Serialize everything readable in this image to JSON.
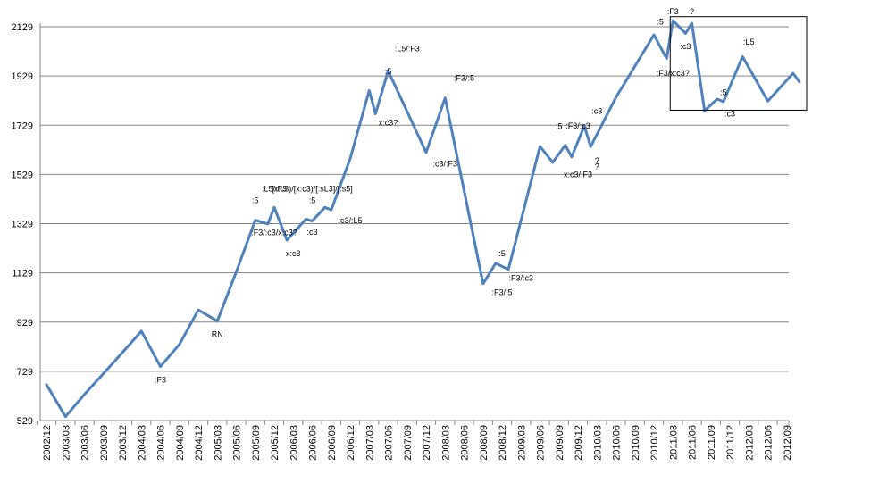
{
  "chart_data": {
    "type": "line",
    "title": "",
    "xlabel": "",
    "ylabel": "",
    "ylim": [
      529,
      2129
    ],
    "yticks": [
      529,
      729,
      929,
      1129,
      1329,
      1529,
      1729,
      1929,
      2129
    ],
    "categories": [
      "2002/12",
      "2003/03",
      "2003/06",
      "2003/09",
      "2003/12",
      "2004/03",
      "2004/06",
      "2004/09",
      "2004/12",
      "2005/03",
      "2005/06",
      "2005/09",
      "2005/12",
      "2006/03",
      "2006/06",
      "2006/09",
      "2006/12",
      "2007/03",
      "2007/06",
      "2007/09",
      "2007/12",
      "2008/03",
      "2008/06",
      "2008/09",
      "2008/12",
      "2009/03",
      "2009/06",
      "2009/09",
      "2009/12",
      "2010/03",
      "2010/06",
      "2010/09",
      "2010/12",
      "2011/03",
      "2011/06",
      "2011/09",
      "2011/12",
      "2012/03",
      "2012/06",
      "2012/09"
    ],
    "series": [
      {
        "color": "#4f81bd",
        "points": [
          [
            "2002/12",
            675
          ],
          [
            "2003/03",
            545
          ],
          [
            "2003/06",
            635
          ],
          [
            "2003/09",
            720
          ],
          [
            "2003/12",
            805
          ],
          [
            "2004/03",
            892
          ],
          [
            "2004/06",
            748
          ],
          [
            "2004/09",
            838
          ],
          [
            "2004/12",
            978
          ],
          [
            "2005/03",
            933
          ],
          [
            "2005/06",
            1133
          ],
          [
            "2005/09",
            1343
          ],
          [
            "2005/11",
            1328
          ],
          [
            "2005/12",
            1395
          ],
          [
            "2006/02",
            1262
          ],
          [
            "2006/03",
            1290
          ],
          [
            "2006/05",
            1347
          ],
          [
            "2006/06",
            1340
          ],
          [
            "2006/08",
            1395
          ],
          [
            "2006/09",
            1385
          ],
          [
            "2006/12",
            1593
          ],
          [
            "2007/03",
            1870
          ],
          [
            "2007/04",
            1775
          ],
          [
            "2007/06",
            1950
          ],
          [
            "2007/12",
            1618
          ],
          [
            "2008/03",
            1840
          ],
          [
            "2008/09",
            1085
          ],
          [
            "2008/11",
            1168
          ],
          [
            "2009/01",
            1143
          ],
          [
            "2009/06",
            1643
          ],
          [
            "2009/08",
            1578
          ],
          [
            "2009/10",
            1648
          ],
          [
            "2009/11",
            1600
          ],
          [
            "2010/01",
            1726
          ],
          [
            "2010/02",
            1642
          ],
          [
            "2010/06",
            1842
          ],
          [
            "2010/12",
            2096
          ],
          [
            "2011/02",
            2000
          ],
          [
            "2011/03",
            2154
          ],
          [
            "2011/05",
            2102
          ],
          [
            "2011/06",
            2143
          ],
          [
            "2011/08",
            1788
          ],
          [
            "2011/10",
            1835
          ],
          [
            "2011/11",
            1825
          ],
          [
            "2012/02",
            2008
          ],
          [
            "2012/06",
            1827
          ],
          [
            "2012/10",
            1940
          ],
          [
            "2012/11",
            1905
          ]
        ]
      }
    ],
    "annotations": [
      {
        "text": ":F3",
        "x": "2004/06",
        "y": 683
      },
      {
        "text": "RN",
        "x": "2005/03",
        "y": 868
      },
      {
        "text": ":5",
        "x": "2005/09",
        "y": 1412
      },
      {
        "text": ":L5/:F3",
        "x": "2005/12",
        "y": 1460
      },
      {
        "text": "[x:c3)/[x:c3)/[:sL3]/[:s5]",
        "x": "2006/06",
        "y": 1460
      },
      {
        "text": ":F3/:c3/x:c3?",
        "x": "2005/12",
        "y": 1282
      },
      {
        "text": "x:c3",
        "x": "2006/03",
        "y": 1196
      },
      {
        "text": ":5",
        "x": "2006/06",
        "y": 1412
      },
      {
        "text": ":c3",
        "x": "2006/06",
        "y": 1284
      },
      {
        "text": ":c3/:L5",
        "x": "2006/12",
        "y": 1330
      },
      {
        "text": ":5",
        "x": "2007/06",
        "y": 1936
      },
      {
        "text": ":L5/:F3",
        "x": "2007/09",
        "y": 2029
      },
      {
        "text": "x:c3?",
        "x": "2007/06",
        "y": 1728
      },
      {
        "text": ":F3/:5",
        "x": "2008/06",
        "y": 1910
      },
      {
        "text": ":c3/:F3",
        "x": "2008/03",
        "y": 1561
      },
      {
        "text": ":5",
        "x": "2008/12",
        "y": 1196
      },
      {
        "text": ":F3/:c3",
        "x": "2009/03",
        "y": 1096
      },
      {
        "text": ":F3/:5",
        "x": "2008/12",
        "y": 1039
      },
      {
        "text": ":5",
        "x": "2009/09",
        "y": 1713
      },
      {
        "text": ":F3/:c3",
        "x": "2009/12",
        "y": 1716
      },
      {
        "text": ":c3",
        "x": "2010/03",
        "y": 1775
      },
      {
        "text": "x:c3/:F3",
        "x": "2009/12",
        "y": 1518
      },
      {
        "text": "?",
        "x": "2010/03",
        "y": 1550
      },
      {
        "text": "?",
        "x": "2010/03",
        "y": 1574
      },
      {
        "text": ":5",
        "x": "2011/01",
        "y": 2138
      },
      {
        "text": ":F3",
        "x": "2011/03",
        "y": 2180
      },
      {
        "text": "?",
        "x": "2011/06",
        "y": 2180
      },
      {
        "text": ":c3",
        "x": "2011/05",
        "y": 2039
      },
      {
        "text": ":F3/x:c3?",
        "x": "2011/03",
        "y": 1930
      },
      {
        "text": ":5",
        "x": "2011/11",
        "y": 1852
      },
      {
        "text": ":c3",
        "x": "2011/12",
        "y": 1765
      },
      {
        "text": ":L5",
        "x": "2012/03",
        "y": 2057
      }
    ],
    "highlight_box": {
      "x_from": "2011/03",
      "x_to": "2012/12",
      "y_from": 1790,
      "y_to": 2170
    },
    "grid": true,
    "legend": "none"
  }
}
